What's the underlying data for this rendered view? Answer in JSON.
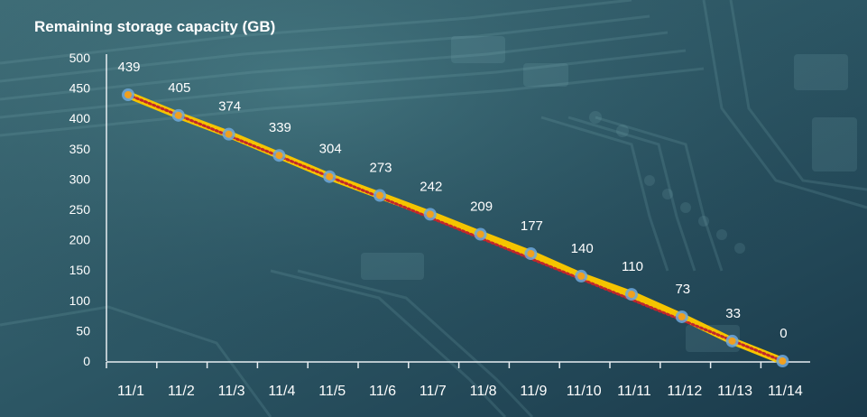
{
  "chart_data": {
    "type": "line",
    "title": "Remaining storage capacity (GB)",
    "xlabel": "",
    "ylabel": "",
    "categories": [
      "11/1",
      "11/2",
      "11/3",
      "11/4",
      "11/5",
      "11/6",
      "11/7",
      "11/8",
      "11/9",
      "11/10",
      "11/11",
      "11/12",
      "11/13",
      "11/14"
    ],
    "series": [
      {
        "values": [
          439,
          405,
          374,
          339,
          304,
          273,
          242,
          209,
          177,
          140,
          110,
          73,
          33,
          0
        ]
      }
    ],
    "ylim": [
      0,
      500
    ],
    "yticks": [
      0,
      50,
      100,
      150,
      200,
      250,
      300,
      350,
      400,
      450,
      500
    ],
    "grid": false,
    "legend": "none",
    "colors": {
      "line": "#f5c400",
      "trend": "#c0262c",
      "marker_fill": "#f0a020",
      "marker_ring": "#6fa8dc",
      "text": "#ffffff",
      "axis": "#e8eef2"
    }
  }
}
